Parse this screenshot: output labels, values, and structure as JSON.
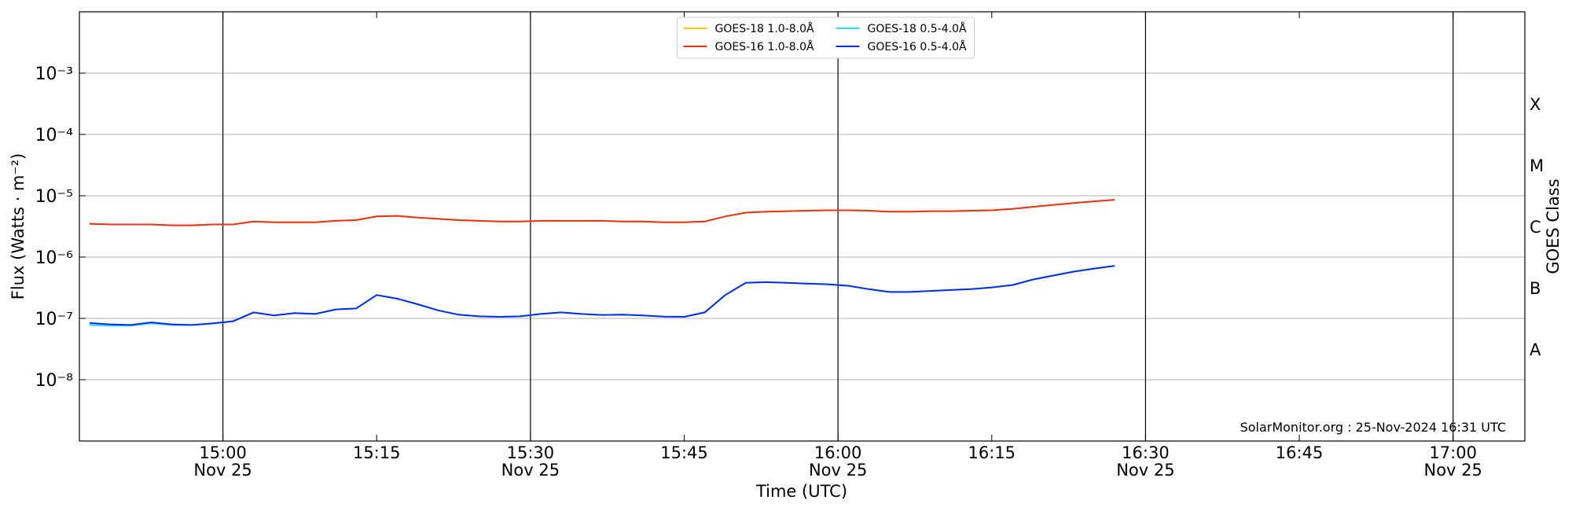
{
  "chart_data": {
    "type": "line",
    "xlabel": "Time (UTC)",
    "ylabel": "Flux (Watts · m⁻²)",
    "y2label": "GOES Class",
    "annotation": "SolarMonitor.org : 25-Nov-2024 16:31 UTC",
    "log_y": true,
    "grid": "y",
    "legend_loc": "upper center",
    "legend_ncol": 2,
    "xlim": [
      "14:46",
      "17:07"
    ],
    "xticks": [
      {
        "value": "15:00",
        "label": "15:00\nNov 25"
      },
      "15:15",
      {
        "value": "15:30",
        "label": "15:30\nNov 25"
      },
      "15:45",
      {
        "value": "16:00",
        "label": "16:00\nNov 25"
      },
      "16:15",
      {
        "value": "16:30",
        "label": "16:30\nNov 25"
      },
      "16:45",
      {
        "value": "17:00",
        "label": "17:00\nNov 25"
      }
    ],
    "ylim": [
      1e-09,
      0.01
    ],
    "yticks": [
      {
        "value": 1e-08,
        "label": "10⁻⁸"
      },
      {
        "value": 1e-07,
        "label": "10⁻⁷"
      },
      {
        "value": 1e-06,
        "label": "10⁻⁶"
      },
      {
        "value": 1e-05,
        "label": "10⁻⁵"
      },
      {
        "value": 0.0001,
        "label": "10⁻⁴"
      },
      {
        "value": 0.001,
        "label": "10⁻³"
      }
    ],
    "y2lim": [
      1e-09,
      0.01
    ],
    "y2ticks": [
      {
        "value": 3.16e-08,
        "label": "A"
      },
      {
        "value": 3.16e-07,
        "label": "B"
      },
      {
        "value": 3.16e-06,
        "label": "C"
      },
      {
        "value": 3.16e-05,
        "label": "M"
      },
      {
        "value": 0.000316,
        "label": "X"
      }
    ],
    "x": [
      "14:47",
      "14:49",
      "14:51",
      "14:53",
      "14:55",
      "14:57",
      "14:59",
      "15:01",
      "15:03",
      "15:05",
      "15:07",
      "15:09",
      "15:11",
      "15:13",
      "15:15",
      "15:17",
      "15:19",
      "15:21",
      "15:23",
      "15:25",
      "15:27",
      "15:29",
      "15:31",
      "15:33",
      "15:35",
      "15:37",
      "15:39",
      "15:41",
      "15:43",
      "15:45",
      "15:47",
      "15:49",
      "15:51",
      "15:53",
      "15:55",
      "15:57",
      "15:59",
      "16:01",
      "16:03",
      "16:05",
      "16:07",
      "16:09",
      "16:11",
      "16:13",
      "16:15",
      "16:17",
      "16:19",
      "16:21",
      "16:23",
      "16:25",
      "16:27"
    ],
    "series": [
      {
        "name": "GOES-18 1.0-8.0Å",
        "color": "#ffcc00",
        "values": [
          3.5e-06,
          3.4e-06,
          3.4e-06,
          3.4e-06,
          3.3e-06,
          3.3e-06,
          3.4e-06,
          3.4e-06,
          3.8e-06,
          3.7e-06,
          3.7e-06,
          3.7e-06,
          3.9e-06,
          4e-06,
          4.6e-06,
          4.7e-06,
          4.4e-06,
          4.2e-06,
          4e-06,
          3.9e-06,
          3.8e-06,
          3.8e-06,
          3.9e-06,
          3.9e-06,
          3.9e-06,
          3.9e-06,
          3.8e-06,
          3.8e-06,
          3.7e-06,
          3.7e-06,
          3.8e-06,
          4.6e-06,
          5.3e-06,
          5.5e-06,
          5.6e-06,
          5.7e-06,
          5.8e-06,
          5.8e-06,
          5.7e-06,
          5.5e-06,
          5.5e-06,
          5.6e-06,
          5.6e-06,
          5.7e-06,
          5.8e-06,
          6.1e-06,
          6.6e-06,
          7.1e-06,
          7.6e-06,
          8.1e-06,
          8.6e-06
        ]
      },
      {
        "name": "GOES-16 1.0-8.0Å",
        "color": "#e8321c",
        "values": [
          3.5e-06,
          3.4e-06,
          3.4e-06,
          3.4e-06,
          3.3e-06,
          3.3e-06,
          3.4e-06,
          3.4e-06,
          3.8e-06,
          3.7e-06,
          3.7e-06,
          3.7e-06,
          3.9e-06,
          4e-06,
          4.6e-06,
          4.7e-06,
          4.4e-06,
          4.2e-06,
          4e-06,
          3.9e-06,
          3.8e-06,
          3.8e-06,
          3.9e-06,
          3.9e-06,
          3.9e-06,
          3.9e-06,
          3.8e-06,
          3.8e-06,
          3.7e-06,
          3.7e-06,
          3.8e-06,
          4.6e-06,
          5.3e-06,
          5.5e-06,
          5.6e-06,
          5.7e-06,
          5.8e-06,
          5.8e-06,
          5.7e-06,
          5.5e-06,
          5.5e-06,
          5.6e-06,
          5.6e-06,
          5.7e-06,
          5.8e-06,
          6.1e-06,
          6.6e-06,
          7.1e-06,
          7.6e-06,
          8.1e-06,
          8.6e-06
        ]
      },
      {
        "name": "GOES-18 0.5-4.0Å",
        "color": "#22e0ff",
        "values": [
          7.8e-08,
          7.6e-08,
          7.6e-08,
          8.3e-08,
          7.8e-08,
          7.8e-08,
          8.2e-08,
          9e-08,
          1.25e-07,
          1.12e-07,
          1.22e-07,
          1.18e-07,
          1.4e-07,
          1.45e-07,
          2.4e-07,
          2.1e-07,
          1.7e-07,
          1.35e-07,
          1.15e-07,
          1.08e-07,
          1.06e-07,
          1.08e-07,
          1.18e-07,
          1.25e-07,
          1.18e-07,
          1.14e-07,
          1.15e-07,
          1.12e-07,
          1.07e-07,
          1.06e-07,
          1.25e-07,
          2.4e-07,
          3.8e-07,
          3.9e-07,
          3.8e-07,
          3.7e-07,
          3.6e-07,
          3.4e-07,
          3e-07,
          2.7e-07,
          2.7e-07,
          2.8e-07,
          2.9e-07,
          3e-07,
          3.2e-07,
          3.5e-07,
          4.3e-07,
          5e-07,
          5.8e-07,
          6.5e-07,
          7.2e-07
        ]
      },
      {
        "name": "GOES-16 0.5-4.0Å",
        "color": "#0a2ee6",
        "values": [
          8.4e-08,
          8e-08,
          7.8e-08,
          8.6e-08,
          8e-08,
          7.8e-08,
          8.3e-08,
          9e-08,
          1.25e-07,
          1.12e-07,
          1.22e-07,
          1.18e-07,
          1.4e-07,
          1.45e-07,
          2.4e-07,
          2.1e-07,
          1.7e-07,
          1.35e-07,
          1.15e-07,
          1.08e-07,
          1.06e-07,
          1.08e-07,
          1.18e-07,
          1.25e-07,
          1.18e-07,
          1.14e-07,
          1.15e-07,
          1.12e-07,
          1.07e-07,
          1.06e-07,
          1.25e-07,
          2.4e-07,
          3.8e-07,
          3.9e-07,
          3.8e-07,
          3.7e-07,
          3.6e-07,
          3.4e-07,
          3e-07,
          2.7e-07,
          2.7e-07,
          2.8e-07,
          2.9e-07,
          3e-07,
          3.2e-07,
          3.5e-07,
          4.3e-07,
          5e-07,
          5.8e-07,
          6.5e-07,
          7.2e-07
        ]
      }
    ]
  }
}
